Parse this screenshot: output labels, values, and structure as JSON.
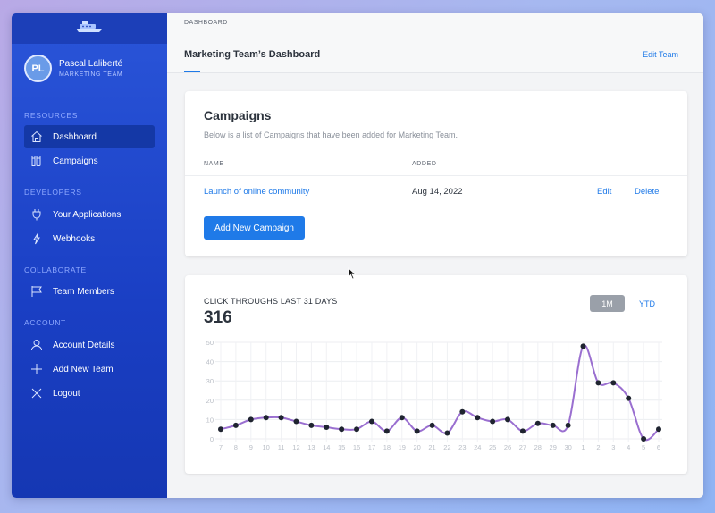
{
  "app": {
    "logo": "ship-logo-icon"
  },
  "user": {
    "initials": "PL",
    "name": "Pascal Laliberté",
    "team": "MARKETING TEAM"
  },
  "sidebar": {
    "sections": [
      {
        "title": "RESOURCES",
        "items": [
          {
            "label": "Dashboard",
            "icon": "home-icon",
            "active": true
          },
          {
            "label": "Campaigns",
            "icon": "campaigns-icon",
            "active": false
          }
        ]
      },
      {
        "title": "DEVELOPERS",
        "items": [
          {
            "label": "Your Applications",
            "icon": "plug-icon",
            "active": false
          },
          {
            "label": "Webhooks",
            "icon": "lightning-icon",
            "active": false
          }
        ]
      },
      {
        "title": "COLLABORATE",
        "items": [
          {
            "label": "Team Members",
            "icon": "flag-icon",
            "active": false
          }
        ]
      },
      {
        "title": "ACCOUNT",
        "items": [
          {
            "label": "Account Details",
            "icon": "user-icon",
            "active": false
          },
          {
            "label": "Add New Team",
            "icon": "plus-icon",
            "active": false
          },
          {
            "label": "Logout",
            "icon": "close-icon",
            "active": false
          }
        ]
      }
    ]
  },
  "header": {
    "breadcrumb": "DASHBOARD",
    "title": "Marketing Team’s Dashboard",
    "edit_team": "Edit Team"
  },
  "campaigns": {
    "title": "Campaigns",
    "subtitle": "Below is a list of Campaigns that have been added for Marketing Team.",
    "columns": [
      "NAME",
      "ADDED"
    ],
    "rows": [
      {
        "name": "Launch of online community",
        "added": "Aug 14, 2022",
        "edit": "Edit",
        "delete": "Delete"
      }
    ],
    "add_button": "Add New Campaign"
  },
  "stats": {
    "title": "CLICK THROUGHS LAST 31 DAYS",
    "total": "316",
    "range_buttons": [
      "1M",
      "YTD"
    ],
    "selected_range": "1M"
  },
  "colors": {
    "accent": "#1f7ae8",
    "sidebar": "#1f47cc",
    "line": "#9a6fd0"
  },
  "chart_data": {
    "type": "line",
    "x": [
      "7",
      "8",
      "9",
      "10",
      "11",
      "12",
      "13",
      "14",
      "15",
      "16",
      "17",
      "18",
      "19",
      "20",
      "21",
      "22",
      "23",
      "24",
      "25",
      "26",
      "27",
      "28",
      "29",
      "30",
      "1",
      "2",
      "3",
      "4",
      "5",
      "6"
    ],
    "values": [
      5,
      7,
      10,
      11,
      11,
      9,
      7,
      6,
      5,
      5,
      9,
      4,
      11,
      4,
      7,
      3,
      14,
      11,
      9,
      10,
      4,
      8,
      7,
      7,
      48,
      29,
      29,
      21,
      0,
      5
    ],
    "yticks": [
      0,
      10,
      20,
      30,
      40,
      50
    ],
    "ylim": [
      0,
      50
    ],
    "grid": true
  }
}
